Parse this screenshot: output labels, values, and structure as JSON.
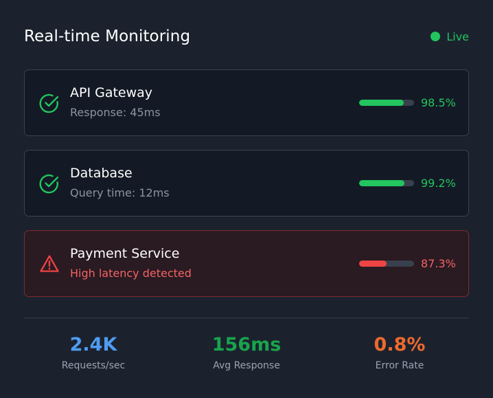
{
  "header": {
    "title": "Real-time Monitoring",
    "status_label": "Live"
  },
  "services": [
    {
      "name": "API Gateway",
      "detail": "Response: 45ms",
      "uptime_label": "98.5%",
      "uptime": 98.5,
      "state": "ok",
      "icon": "check-circle-icon"
    },
    {
      "name": "Database",
      "detail": "Query time: 12ms",
      "uptime_label": "99.2%",
      "uptime": 99.2,
      "state": "ok",
      "icon": "check-circle-icon"
    },
    {
      "name": "Payment Service",
      "detail": "High latency detected",
      "uptime_label": "87.3%",
      "uptime": 87.3,
      "state": "alert",
      "icon": "warning-triangle-icon"
    }
  ],
  "stats": [
    {
      "value": "2.4K",
      "label": "Requests/sec",
      "color": "#4f9cf0"
    },
    {
      "value": "156ms",
      "label": "Avg Response",
      "color": "#18a44c"
    },
    {
      "value": "0.8%",
      "label": "Error Rate",
      "color": "#ec6a2d"
    }
  ],
  "colors": {
    "ok": "#22c55e",
    "alert": "#ef4444",
    "background": "#1b222e"
  }
}
